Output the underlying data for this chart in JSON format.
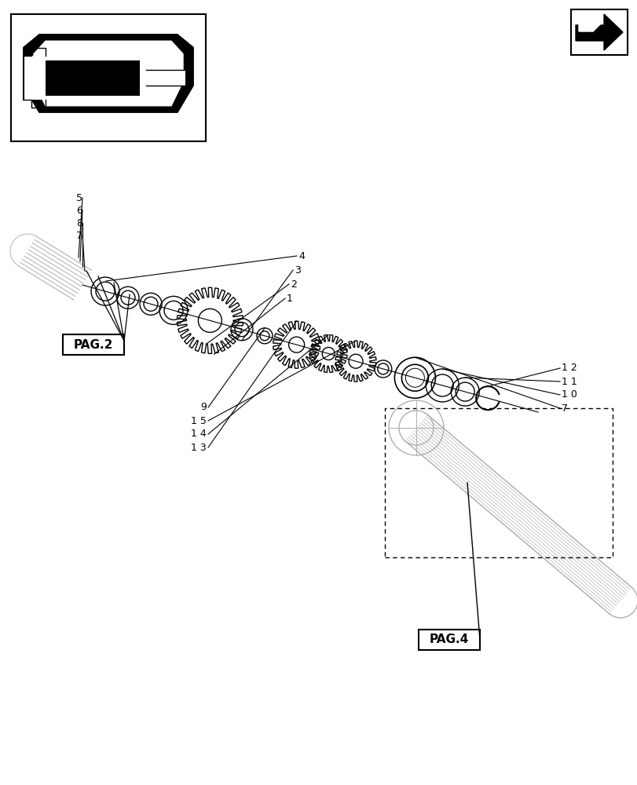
{
  "bg_color": "#ffffff",
  "line_color": "#000000",
  "light_gray": "#c8c8c8",
  "mid_gray": "#b0b0b0",
  "pag4_label": "PAG.4",
  "pag2_label": "PAG.2",
  "part_numbers_left_top": [
    "1 3",
    "1 4",
    "1 5",
    "9"
  ],
  "part_numbers_right": [
    "7",
    "1 0",
    "1 1",
    "1 2"
  ],
  "part_numbers_center_bottom": [
    "1",
    "2",
    "3",
    "4"
  ],
  "part_numbers_far_left": [
    "7",
    "8",
    "6",
    "5"
  ]
}
